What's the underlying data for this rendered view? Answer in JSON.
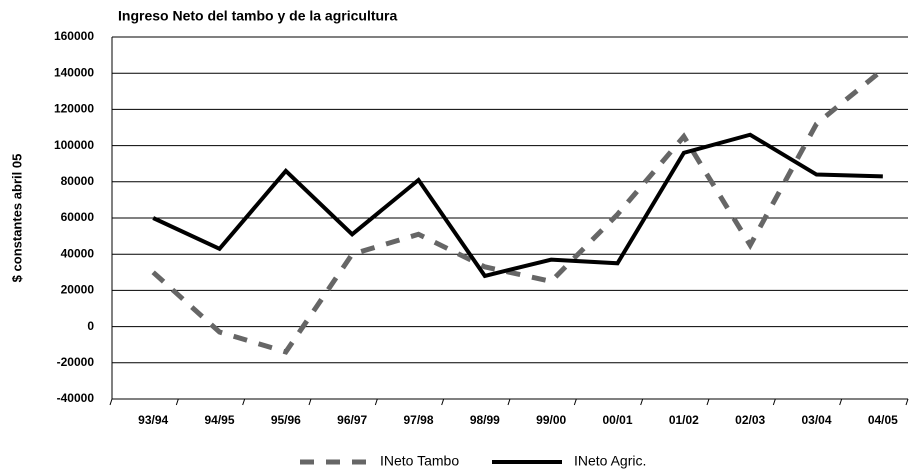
{
  "chart_data": {
    "type": "line",
    "title": "Ingreso Neto del tambo y de la agricultura",
    "y_label": "$ constantes abril 05",
    "categories": [
      "93/94",
      "94/95",
      "95/96",
      "96/97",
      "97/98",
      "98/99",
      "99/00",
      "00/01",
      "01/02",
      "02/03",
      "03/04",
      "04/05"
    ],
    "series": [
      {
        "name": "INeto Tambo",
        "color": "#666666",
        "dashed": true,
        "values": [
          30000,
          -3000,
          -14000,
          40000,
          51000,
          33000,
          25000,
          62000,
          105000,
          45000,
          112000,
          142000
        ]
      },
      {
        "name": "INeto Agric.",
        "color": "#000000",
        "dashed": false,
        "values": [
          60000,
          43000,
          86000,
          51000,
          81000,
          28000,
          37000,
          35000,
          96000,
          106000,
          84000,
          83000
        ]
      }
    ],
    "ylim": [
      -40000,
      160000
    ],
    "yticks": [
      -40000,
      -20000,
      0,
      20000,
      40000,
      60000,
      80000,
      100000,
      120000,
      140000,
      160000
    ],
    "grid": true,
    "legend": "bottom"
  }
}
